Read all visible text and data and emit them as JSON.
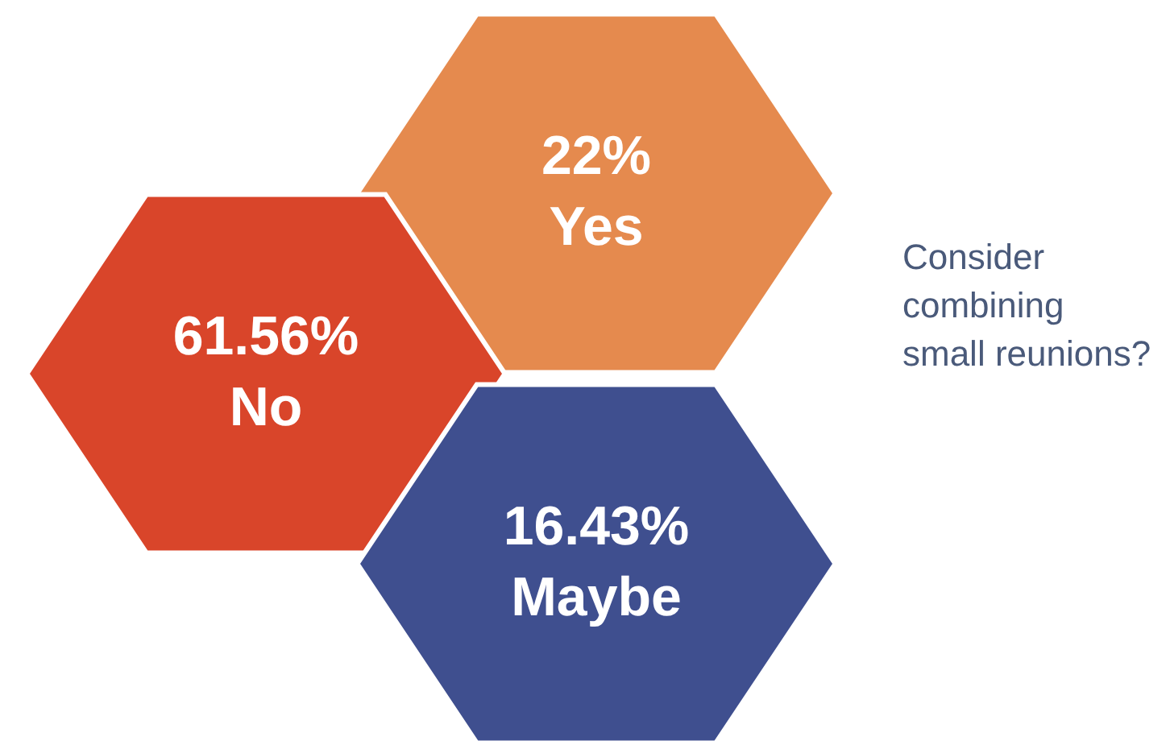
{
  "chart_data": {
    "type": "other",
    "title": "Consider combining small reunions?",
    "categories": [
      "Yes",
      "No",
      "Maybe"
    ],
    "values": [
      22,
      61.56,
      16.43
    ],
    "value_labels": [
      "22%",
      "61.56%",
      "16.43%"
    ],
    "colors": [
      "#e58a4e",
      "#d9452a",
      "#3f4f8f"
    ]
  }
}
